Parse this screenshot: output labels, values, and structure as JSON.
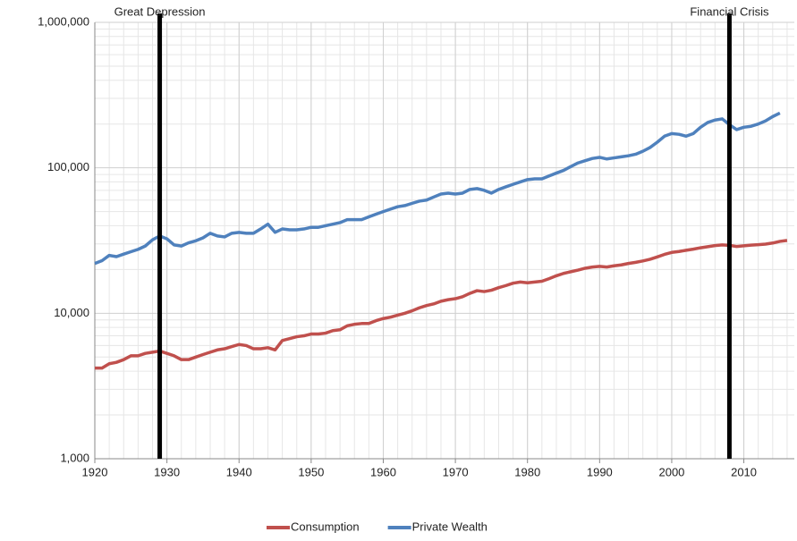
{
  "chart_data": {
    "type": "line",
    "x": [
      1920,
      1921,
      1922,
      1923,
      1924,
      1925,
      1926,
      1927,
      1928,
      1929,
      1930,
      1931,
      1932,
      1933,
      1934,
      1935,
      1936,
      1937,
      1938,
      1939,
      1940,
      1941,
      1942,
      1943,
      1944,
      1945,
      1946,
      1947,
      1948,
      1949,
      1950,
      1951,
      1952,
      1953,
      1954,
      1955,
      1956,
      1957,
      1958,
      1959,
      1960,
      1961,
      1962,
      1963,
      1964,
      1965,
      1966,
      1967,
      1968,
      1969,
      1970,
      1971,
      1972,
      1973,
      1974,
      1975,
      1976,
      1977,
      1978,
      1979,
      1980,
      1981,
      1982,
      1983,
      1984,
      1985,
      1986,
      1987,
      1988,
      1989,
      1990,
      1991,
      1992,
      1993,
      1994,
      1995,
      1996,
      1997,
      1998,
      1999,
      2000,
      2001,
      2002,
      2003,
      2004,
      2005,
      2006,
      2007,
      2008,
      2009,
      2010,
      2011,
      2012,
      2013,
      2014,
      2015,
      2016
    ],
    "series": [
      {
        "name": "Consumption",
        "color": "#c0504d",
        "values": [
          4200,
          4200,
          4500,
          4600,
          4800,
          5100,
          5100,
          5300,
          5400,
          5500,
          5300,
          5100,
          4800,
          4800,
          5000,
          5200,
          5400,
          5600,
          5700,
          5900,
          6100,
          6000,
          5700,
          5700,
          5800,
          5600,
          6500,
          6700,
          6900,
          7000,
          7200,
          7200,
          7300,
          7600,
          7700,
          8200,
          8400,
          8500,
          8500,
          8900,
          9200,
          9400,
          9700,
          10000,
          10400,
          10900,
          11300,
          11600,
          12100,
          12400,
          12600,
          13000,
          13700,
          14300,
          14100,
          14400,
          15000,
          15500,
          16100,
          16400,
          16200,
          16400,
          16600,
          17300,
          18100,
          18800,
          19300,
          19800,
          20400,
          20800,
          21000,
          20800,
          21200,
          21500,
          22000,
          22400,
          22900,
          23500,
          24400,
          25400,
          26200,
          26600,
          27100,
          27600,
          28200,
          28700,
          29200,
          29500,
          29300,
          28800,
          29100,
          29400,
          29600,
          29900,
          30400,
          31200,
          31700
        ]
      },
      {
        "name": "Private Wealth",
        "color": "#4f81bd",
        "values": [
          22000,
          23000,
          25000,
          24500,
          25500,
          26500,
          27500,
          29000,
          32000,
          34000,
          32500,
          29500,
          29000,
          30500,
          31500,
          33000,
          35500,
          34000,
          33500,
          35500,
          36000,
          35500,
          35500,
          38000,
          41000,
          36000,
          38000,
          37500,
          37500,
          38000,
          39000,
          39000,
          40000,
          41000,
          42000,
          44000,
          44000,
          44000,
          46000,
          48000,
          50000,
          52000,
          54000,
          55000,
          57000,
          59000,
          60000,
          63000,
          66000,
          67000,
          66000,
          67000,
          71000,
          72000,
          70000,
          67000,
          71000,
          74000,
          77000,
          80000,
          83000,
          84000,
          84000,
          88000,
          92000,
          96000,
          102000,
          108000,
          112000,
          116000,
          118000,
          115000,
          117000,
          119000,
          121000,
          124000,
          130000,
          138000,
          150000,
          165000,
          172000,
          170000,
          165000,
          172000,
          190000,
          205000,
          213000,
          217000,
          198000,
          183000,
          190000,
          193000,
          200000,
          210000,
          225000,
          238000,
          null
        ]
      }
    ],
    "xlim": [
      1920,
      2017
    ],
    "xticks": [
      1920,
      1930,
      1940,
      1950,
      1960,
      1970,
      1980,
      1990,
      2000,
      2010
    ],
    "ylim": [
      1000,
      1000000
    ],
    "yticks": [
      {
        "value": 1000,
        "label": "1,000"
      },
      {
        "value": 10000,
        "label": "10,000"
      },
      {
        "value": 100000,
        "label": "100,000"
      },
      {
        "value": 1000000,
        "label": "1,000,000"
      }
    ],
    "log_y": true,
    "grid": true,
    "legend": "bottom",
    "annotations": [
      {
        "x": 1929,
        "label": "Great Depression"
      },
      {
        "x": 2008,
        "label": "Financial Crisis"
      }
    ]
  }
}
